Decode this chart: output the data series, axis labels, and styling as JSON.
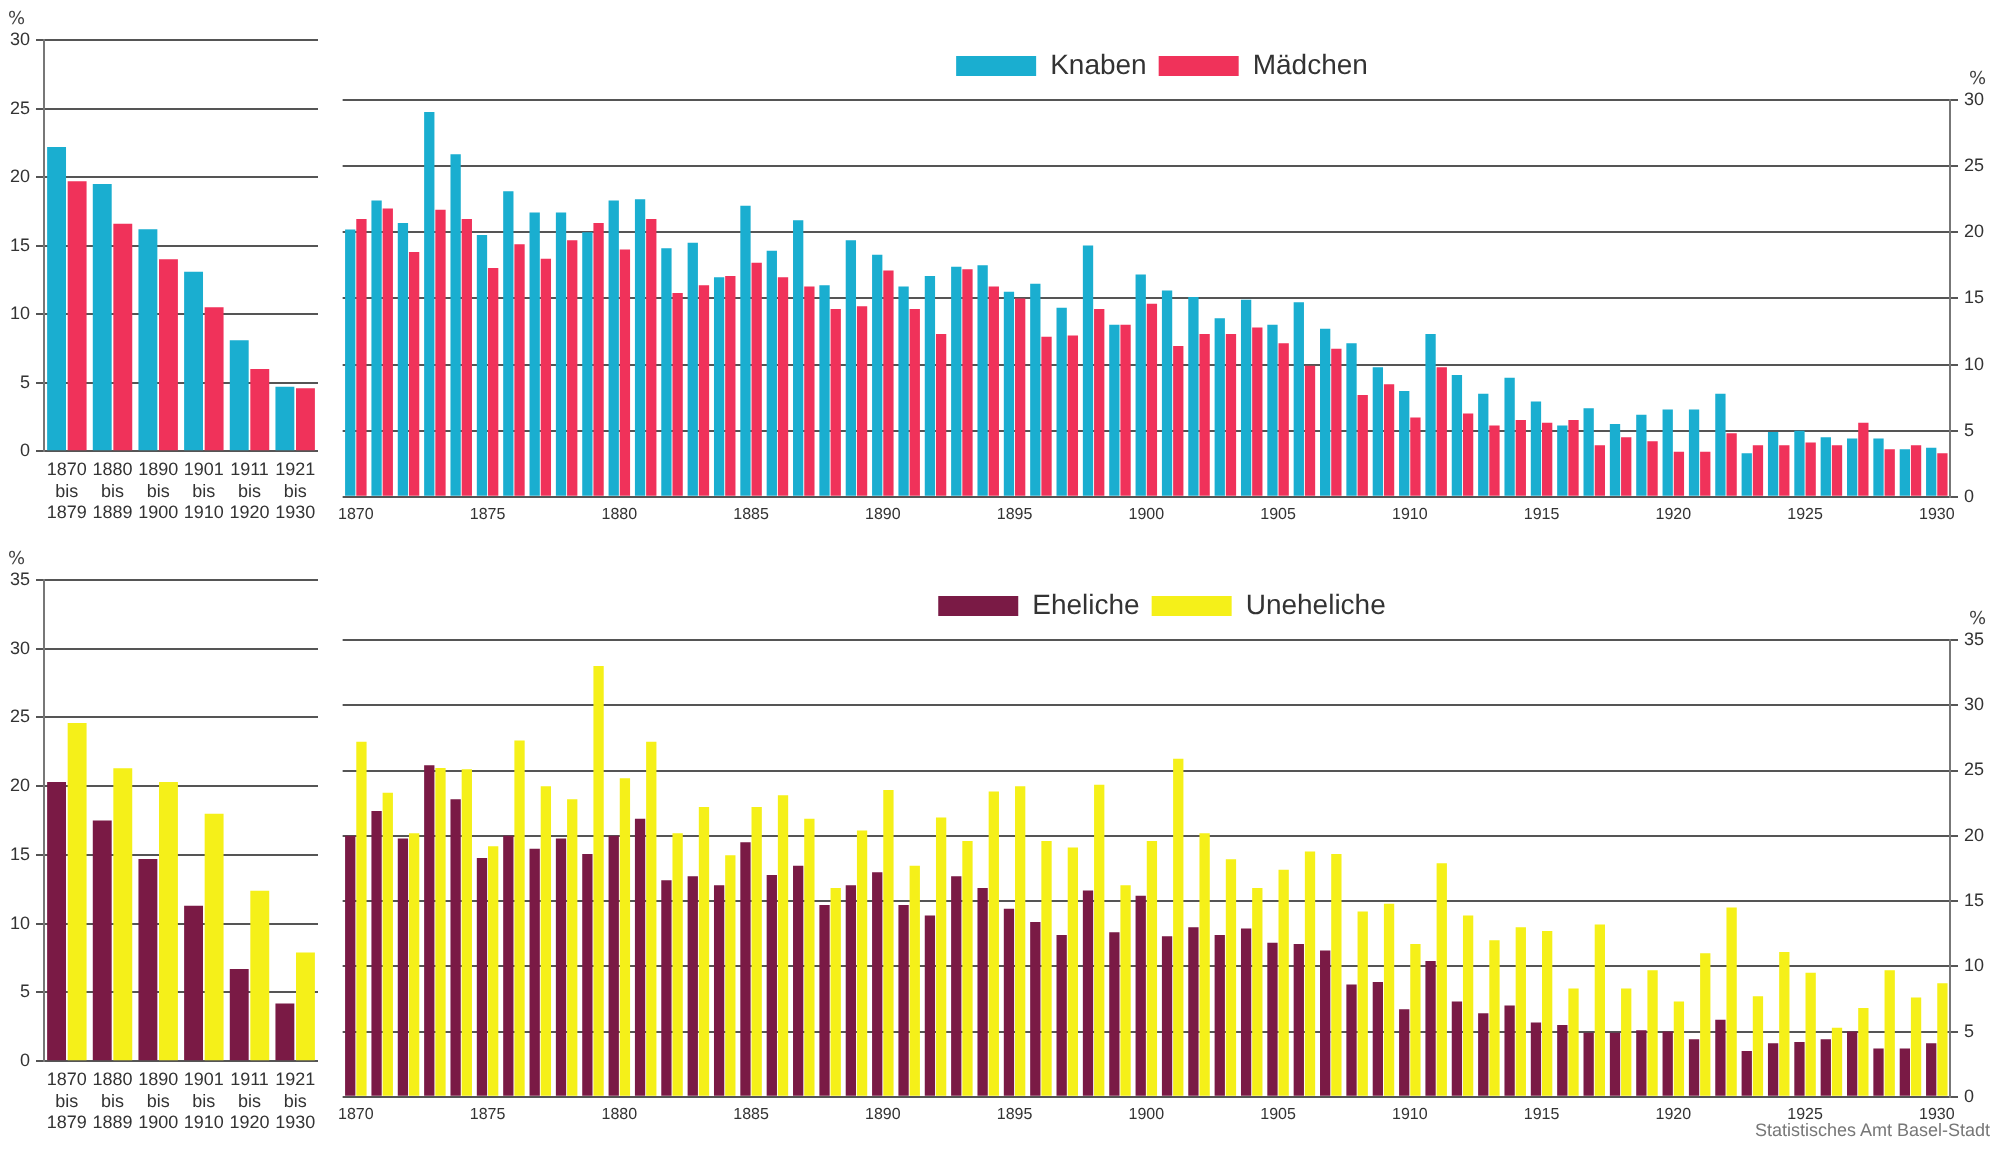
{
  "chart_data": [
    {
      "type": "bar",
      "ylabel": "%",
      "categories": [
        "1870 bis 1879",
        "1880 bis 1889",
        "1890 bis 1900",
        "1901 bis 1910",
        "1911 bis 1920",
        "1921 bis 1930"
      ],
      "series": [
        {
          "color": "#1aaed0",
          "values": [
            22.2,
            19.5,
            16.2,
            13.1,
            8.1,
            4.7
          ]
        },
        {
          "color": "#f0325a",
          "values": [
            19.7,
            16.6,
            14.0,
            10.5,
            6.0,
            4.6
          ]
        }
      ],
      "ylim": [
        0,
        30
      ],
      "yticks": [
        0,
        5,
        10,
        15,
        20,
        25,
        30
      ],
      "grid": "y",
      "legend": false
    },
    {
      "type": "bar",
      "ylabel": "%",
      "categories": [
        "1870",
        null,
        null,
        null,
        null,
        "1875",
        null,
        null,
        null,
        null,
        "1880",
        null,
        null,
        null,
        null,
        "1885",
        null,
        null,
        null,
        null,
        "1890",
        null,
        null,
        null,
        null,
        "1895",
        null,
        null,
        null,
        null,
        "1900",
        null,
        null,
        null,
        null,
        "1905",
        null,
        null,
        null,
        null,
        "1910",
        null,
        null,
        null,
        null,
        "1915",
        null,
        null,
        null,
        null,
        "1920",
        null,
        null,
        null,
        null,
        "1925",
        null,
        null,
        null,
        null,
        "1930"
      ],
      "series": [
        {
          "name": "Knaben",
          "color": "#1aaed0",
          "values": [
            20.2,
            22.4,
            20.7,
            29.1,
            25.9,
            19.8,
            23.1,
            21.5,
            21.5,
            20.0,
            22.4,
            22.5,
            18.8,
            19.2,
            16.6,
            22.0,
            18.6,
            20.9,
            16.0,
            19.4,
            18.3,
            15.9,
            16.7,
            17.4,
            17.5,
            15.5,
            16.1,
            14.3,
            19.0,
            13.0,
            16.8,
            15.6,
            15.1,
            13.5,
            14.9,
            13.0,
            14.7,
            12.7,
            11.6,
            9.8,
            8.0,
            12.3,
            9.2,
            7.8,
            9.0,
            7.2,
            5.4,
            6.7,
            5.5,
            6.2,
            6.6,
            6.6,
            7.8,
            3.3,
            4.9,
            5.0,
            4.5,
            4.4,
            4.4,
            3.6,
            3.7
          ]
        },
        {
          "name": "Mädchen",
          "color": "#f0325a",
          "values": [
            21.0,
            21.8,
            18.5,
            21.7,
            21.0,
            17.3,
            19.1,
            18.0,
            19.4,
            20.7,
            18.7,
            21.0,
            15.4,
            16.0,
            16.7,
            17.7,
            16.6,
            15.9,
            14.2,
            14.4,
            17.1,
            14.2,
            12.3,
            17.2,
            15.9,
            15.0,
            12.1,
            12.2,
            14.2,
            13.0,
            14.6,
            11.4,
            12.3,
            12.3,
            12.8,
            11.6,
            9.9,
            11.2,
            7.7,
            8.5,
            6.0,
            9.8,
            6.3,
            5.4,
            5.8,
            5.6,
            5.8,
            3.9,
            4.5,
            4.2,
            3.4,
            3.4,
            4.8,
            3.9,
            3.9,
            4.1,
            3.9,
            5.6,
            3.6,
            3.9,
            3.3
          ]
        }
      ],
      "ylim": [
        0,
        30
      ],
      "yticks": [
        0,
        5,
        10,
        15,
        20,
        25,
        30
      ],
      "grid": "y",
      "legend": "top"
    },
    {
      "type": "bar",
      "ylabel": "%",
      "categories": [
        "1870 bis 1879",
        "1880 bis 1889",
        "1890 bis 1900",
        "1901 bis 1910",
        "1911 bis 1920",
        "1921 bis 1930"
      ],
      "series": [
        {
          "color": "#7a1a45",
          "values": [
            20.3,
            17.5,
            14.7,
            11.3,
            6.7,
            4.2
          ]
        },
        {
          "color": "#f5f019",
          "values": [
            24.6,
            21.3,
            20.3,
            18.0,
            12.4,
            7.9
          ]
        }
      ],
      "ylim": [
        0,
        35
      ],
      "yticks": [
        0,
        5,
        10,
        15,
        20,
        25,
        30,
        35
      ],
      "grid": "y",
      "legend": false
    },
    {
      "type": "bar",
      "ylabel": "%",
      "categories": [
        "1870",
        null,
        null,
        null,
        null,
        "1875",
        null,
        null,
        null,
        null,
        "1880",
        null,
        null,
        null,
        null,
        "1885",
        null,
        null,
        null,
        null,
        "1890",
        null,
        null,
        null,
        null,
        "1895",
        null,
        null,
        null,
        null,
        "1900",
        null,
        null,
        null,
        null,
        "1905",
        null,
        null,
        null,
        null,
        "1910",
        null,
        null,
        null,
        null,
        "1915",
        null,
        null,
        null,
        null,
        "1920",
        null,
        null,
        null,
        null,
        "1925",
        null,
        null,
        null,
        null,
        "1930"
      ],
      "series": [
        {
          "name": "Eheliche",
          "color": "#7a1a45",
          "values": [
            20.0,
            21.9,
            19.8,
            25.4,
            22.8,
            18.3,
            20.0,
            19.0,
            19.8,
            18.6,
            20.0,
            21.3,
            16.6,
            16.9,
            16.2,
            19.5,
            17.0,
            17.7,
            14.7,
            16.2,
            17.2,
            14.7,
            13.9,
            16.9,
            16.0,
            14.4,
            13.4,
            12.4,
            15.8,
            12.6,
            15.4,
            12.3,
            13.0,
            12.4,
            12.9,
            11.8,
            11.7,
            11.2,
            8.6,
            8.8,
            6.7,
            10.4,
            7.3,
            6.4,
            7.0,
            5.7,
            5.5,
            4.9,
            4.9,
            5.1,
            5.0,
            4.4,
            5.9,
            3.5,
            4.1,
            4.2,
            4.4,
            5.0,
            3.7,
            3.7,
            4.1
          ]
        },
        {
          "name": "Uneheliche",
          "color": "#f5f019",
          "values": [
            27.2,
            23.3,
            20.2,
            25.2,
            25.1,
            19.2,
            27.3,
            23.8,
            22.8,
            33.0,
            24.4,
            27.2,
            20.2,
            22.2,
            18.5,
            22.2,
            23.1,
            21.3,
            16.0,
            20.4,
            23.5,
            17.7,
            21.4,
            19.6,
            23.4,
            23.8,
            19.6,
            19.1,
            23.9,
            16.2,
            19.6,
            25.9,
            20.2,
            18.2,
            16.0,
            17.4,
            18.8,
            18.6,
            14.2,
            14.8,
            11.7,
            17.9,
            13.9,
            12.0,
            13.0,
            12.7,
            8.3,
            13.2,
            8.3,
            9.7,
            7.3,
            11.0,
            14.5,
            7.7,
            11.1,
            9.5,
            5.3,
            6.8,
            9.7,
            7.6,
            8.7
          ]
        }
      ],
      "ylim": [
        0,
        35
      ],
      "yticks": [
        0,
        5,
        10,
        15,
        20,
        25,
        30,
        35
      ],
      "grid": "y",
      "legend": "top",
      "annotations": [
        "Statistisches Amt Basel-Stadt"
      ]
    }
  ]
}
